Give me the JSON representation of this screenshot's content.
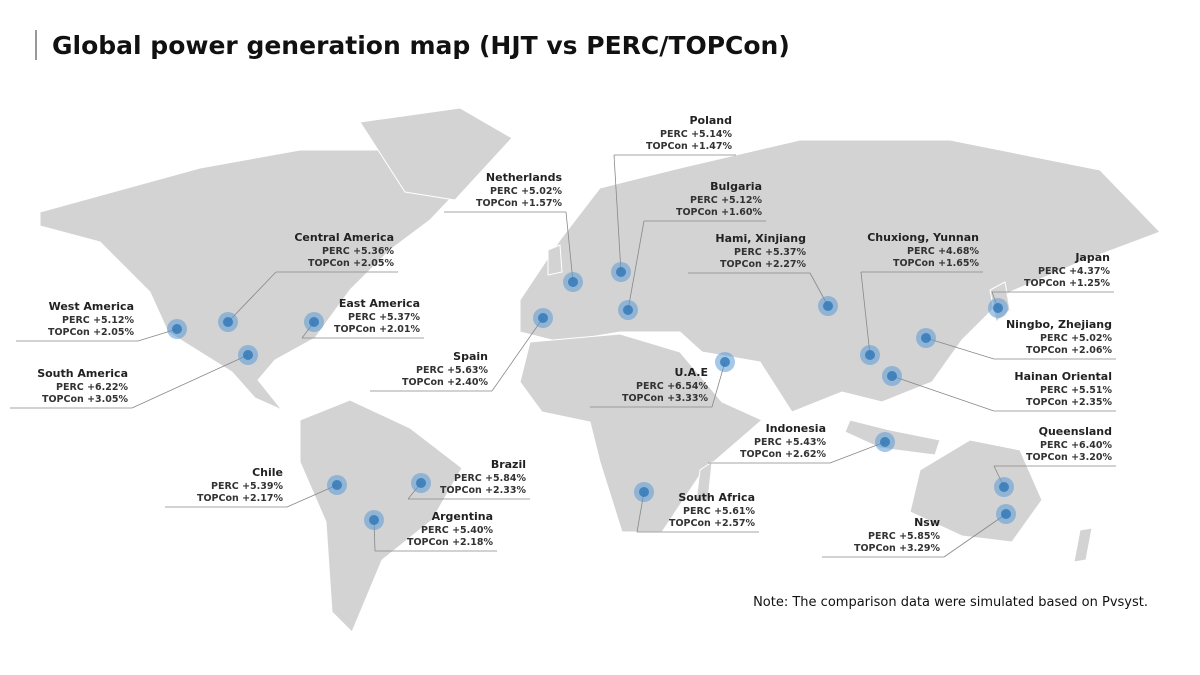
{
  "header": {
    "title": "Global power generation map  (HJT vs PERC/TOPCon)"
  },
  "locations": [
    {
      "name": "Poland",
      "perc": "PERC +5.14%",
      "topcon": "TOPCon +1.47%"
    },
    {
      "name": "Netherlands",
      "perc": "PERC +5.02%",
      "topcon": "TOPCon +1.57%"
    },
    {
      "name": "Bulgaria",
      "perc": "PERC +5.12%",
      "topcon": "TOPCon +1.60%"
    },
    {
      "name": "Central America",
      "perc": "PERC +5.36%",
      "topcon": "TOPCon +2.05%"
    },
    {
      "name": "West America",
      "perc": "PERC +5.12%",
      "topcon": "TOPCon +2.05%"
    },
    {
      "name": "East America",
      "perc": "PERC +5.37%",
      "topcon": "TOPCon +2.01%"
    },
    {
      "name": "South America",
      "perc": "PERC +6.22%",
      "topcon": "TOPCon +3.05%"
    },
    {
      "name": "Spain",
      "perc": "PERC +5.63%",
      "topcon": "TOPCon +2.40%"
    },
    {
      "name": "U.A.E",
      "perc": "PERC +6.54%",
      "topcon": "TOPCon +3.33%"
    },
    {
      "name": "Hami, Xinjiang",
      "perc": "PERC +5.37%",
      "topcon": "TOPCon +2.27%"
    },
    {
      "name": "Chuxiong, Yunnan",
      "perc": "PERC +4.68%",
      "topcon": "TOPCon +1.65%"
    },
    {
      "name": "Japan",
      "perc": "PERC +4.37%",
      "topcon": "TOPCon +1.25%"
    },
    {
      "name": "Ningbo, Zhejiang",
      "perc": "PERC +5.02%",
      "topcon": "TOPCon +2.06%"
    },
    {
      "name": "Hainan Oriental",
      "perc": "PERC +5.51%",
      "topcon": "TOPCon +2.35%"
    },
    {
      "name": "Indonesia",
      "perc": "PERC +5.43%",
      "topcon": "TOPCon +2.62%"
    },
    {
      "name": "Queensland",
      "perc": "PERC +6.40%",
      "topcon": "TOPCon +3.20%"
    },
    {
      "name": "Nsw",
      "perc": "PERC +5.85%",
      "topcon": "TOPCon +3.29%"
    },
    {
      "name": "Chile",
      "perc": "PERC +5.39%",
      "topcon": "TOPCon +2.17%"
    },
    {
      "name": "Brazil",
      "perc": "PERC +5.84%",
      "topcon": "TOPCon +2.33%"
    },
    {
      "name": "Argentina",
      "perc": "PERC +5.40%",
      "topcon": "TOPCon +2.18%"
    },
    {
      "name": "South Africa",
      "perc": "PERC +5.61%",
      "topcon": "TOPCon +2.57%"
    }
  ],
  "note": "Note: The comparison data were simulated based on Pvsyst."
}
